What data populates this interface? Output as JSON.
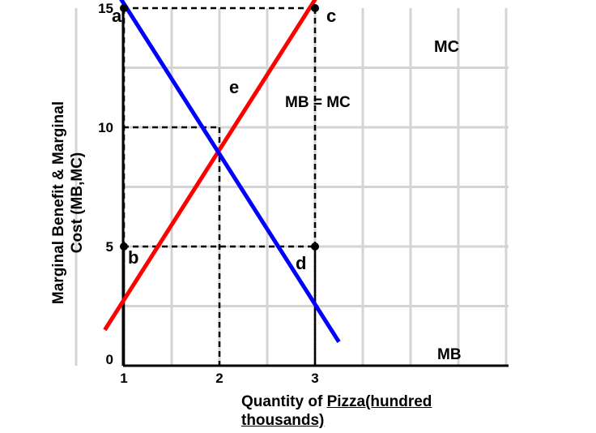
{
  "chart_data": {
    "type": "line",
    "xlabel_part1": "Quantity of ",
    "xlabel_part2": "Pizza(hundred thousands)",
    "ylabel_line1": "Marginal Benefit & Marginal",
    "ylabel_line2": "Cost (MB,MC)",
    "xticks": [
      "1",
      "2",
      "3"
    ],
    "yticks": [
      "0",
      "5",
      "10",
      "15"
    ],
    "ylim": [
      0,
      17
    ],
    "grid": true,
    "series": [
      {
        "name": "MC",
        "color": "#ff0000",
        "x": [
          0.8,
          3.15
        ],
        "y": [
          1.5,
          16.3
        ]
      },
      {
        "name": "MB",
        "color": "#0000ff",
        "x": [
          0.95,
          3.25
        ],
        "y": [
          15.5,
          1.0
        ]
      }
    ],
    "points": [
      {
        "label": "a",
        "x": 1,
        "y": 15
      },
      {
        "label": "c",
        "x": 3,
        "y": 15
      },
      {
        "label": "e",
        "x": 2,
        "y": 10
      },
      {
        "label": "b",
        "x": 1,
        "y": 5
      },
      {
        "label": "d",
        "x": 3,
        "y": 5
      }
    ],
    "annotation": "MB = MC"
  }
}
